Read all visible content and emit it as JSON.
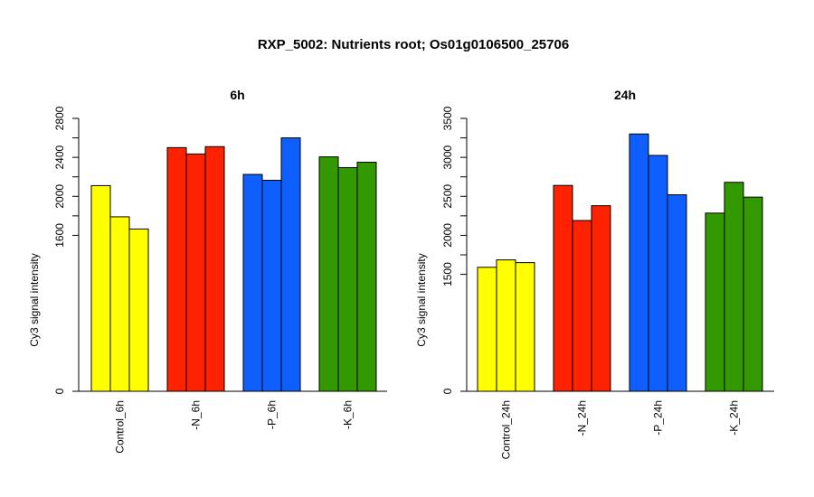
{
  "title": "RXP_5002: Nutrients root; Os01g0106500_25706",
  "chart_data": [
    {
      "type": "bar",
      "title": "6h",
      "ylabel": "Cy3 signal intensity",
      "ylim": [
        0,
        2800
      ],
      "yticks": [
        0,
        1600,
        2000,
        2400,
        2800
      ],
      "categories": [
        "Control_6h",
        "-N_6h",
        "-P_6h",
        "-K_6h"
      ],
      "colors": [
        "#FFFF00",
        "#FF2200",
        "#0F5FFF",
        "#339900"
      ],
      "values": [
        [
          2110,
          1790,
          1665
        ],
        [
          2500,
          2435,
          2510
        ],
        [
          2225,
          2165,
          2600
        ],
        [
          2405,
          2295,
          2350
        ]
      ]
    },
    {
      "type": "bar",
      "title": "24h",
      "ylabel": "Cy3 signal intensity",
      "ylim": [
        0,
        3500
      ],
      "yticks": [
        0,
        1500,
        2000,
        2500,
        3000,
        3500
      ],
      "categories": [
        "Control_24h",
        "-N_24h",
        "-P_24h",
        "-K_24h"
      ],
      "colors": [
        "#FFFF00",
        "#FF2200",
        "#0F5FFF",
        "#339900"
      ],
      "values": [
        [
          1590,
          1685,
          1650
        ],
        [
          2640,
          2190,
          2380
        ],
        [
          3300,
          3025,
          2520
        ],
        [
          2285,
          2680,
          2490
        ]
      ]
    }
  ]
}
